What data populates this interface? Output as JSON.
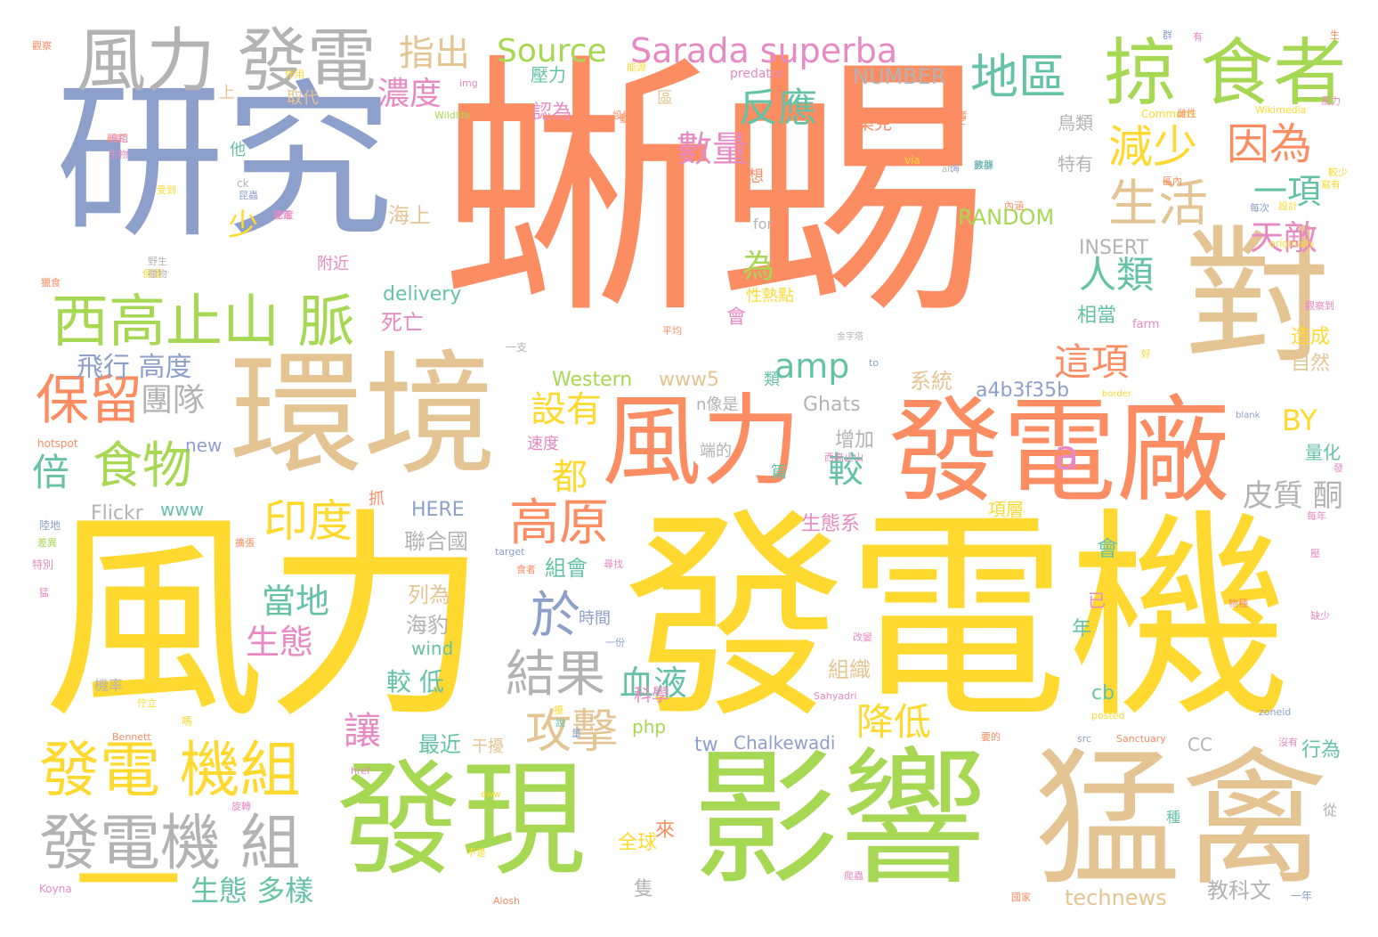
{
  "palette": {
    "salmon": "#fc8d62",
    "slate": "#8da0cb",
    "pink": "#e78ac3",
    "lime": "#a6d854",
    "yellow": "#ffd92f",
    "tan": "#e5c494",
    "gray": "#b3b3b3",
    "green": "#66c2a5"
  },
  "words": [
    {
      "id": "w1",
      "t": "蜥蜴",
      "c": "salmon"
    },
    {
      "id": "w2",
      "t": "風力",
      "c": "yellow"
    },
    {
      "id": "w3",
      "t": "發電機",
      "c": "yellow"
    },
    {
      "id": "w4",
      "t": "研究",
      "c": "slate"
    },
    {
      "id": "w5",
      "t": "環境",
      "c": "tan"
    },
    {
      "id": "w6",
      "t": "影響",
      "c": "lime"
    },
    {
      "id": "w7",
      "t": "猛禽",
      "c": "tan"
    },
    {
      "id": "w8",
      "t": "發現",
      "c": "lime"
    },
    {
      "id": "w9",
      "t": "對",
      "c": "tan"
    },
    {
      "id": "w10",
      "t": "發電廠",
      "c": "salmon"
    },
    {
      "id": "w11",
      "t": "風力",
      "c": "salmon"
    },
    {
      "id": "w12",
      "t": "風力 發電",
      "c": "gray"
    },
    {
      "id": "w13",
      "t": "掠 食者",
      "c": "lime"
    },
    {
      "id": "w14",
      "t": "西高止山 脈",
      "c": "lime"
    },
    {
      "id": "w15",
      "t": "發電 機組",
      "c": "yellow"
    },
    {
      "id": "w16",
      "t": "發電機 組",
      "c": "gray"
    },
    {
      "id": "w17",
      "t": "一",
      "c": "yellow"
    },
    {
      "id": "w18",
      "t": "Sarada superba",
      "c": "pink"
    },
    {
      "id": "w19",
      "t": "Source",
      "c": "lime"
    },
    {
      "id": "w20",
      "t": "地區",
      "c": "green"
    },
    {
      "id": "w21",
      "t": "生活",
      "c": "tan"
    },
    {
      "id": "w22",
      "t": "減少",
      "c": "yellow"
    },
    {
      "id": "w23",
      "t": "因為",
      "c": "salmon"
    },
    {
      "id": "w24",
      "t": "指出",
      "c": "tan"
    },
    {
      "id": "w25",
      "t": "保留",
      "c": "salmon"
    },
    {
      "id": "w26",
      "t": "食物",
      "c": "lime"
    },
    {
      "id": "w27",
      "t": "高原",
      "c": "salmon"
    },
    {
      "id": "w28",
      "t": "印度",
      "c": "yellow"
    },
    {
      "id": "w29",
      "t": "攻擊",
      "c": "tan"
    },
    {
      "id": "w30",
      "t": "結果",
      "c": "gray"
    },
    {
      "id": "w31",
      "t": "於",
      "c": "slate"
    },
    {
      "id": "w32",
      "t": "反應",
      "c": "green"
    },
    {
      "id": "w33",
      "t": "數量",
      "c": "pink"
    },
    {
      "id": "w34",
      "t": "amp",
      "c": "green"
    },
    {
      "id": "w35",
      "t": "一項",
      "c": "green"
    },
    {
      "id": "w36",
      "t": "天敵",
      "c": "pink"
    },
    {
      "id": "w37",
      "t": "人類",
      "c": "green"
    },
    {
      "id": "w38",
      "t": "這項",
      "c": "salmon"
    },
    {
      "id": "w39",
      "t": "濃度",
      "c": "pink"
    },
    {
      "id": "w40",
      "t": "團隊",
      "c": "gray"
    },
    {
      "id": "w41",
      "t": "飛行 高度",
      "c": "slate"
    },
    {
      "id": "w42",
      "t": "倍",
      "c": "green"
    },
    {
      "id": "w43",
      "t": "a",
      "c": "pink"
    },
    {
      "id": "w44",
      "t": "為",
      "c": "lime"
    },
    {
      "id": "w45",
      "t": "設有",
      "c": "yellow"
    },
    {
      "id": "w46",
      "t": "都",
      "c": "yellow"
    },
    {
      "id": "w47",
      "t": "當地",
      "c": "green"
    },
    {
      "id": "w48",
      "t": "生態",
      "c": "pink"
    },
    {
      "id": "w49",
      "t": "血液",
      "c": "green"
    },
    {
      "id": "w50",
      "t": "較",
      "c": "green"
    },
    {
      "id": "w51",
      "t": "降低",
      "c": "yellow"
    },
    {
      "id": "w52",
      "t": "讓",
      "c": "pink"
    },
    {
      "id": "w53",
      "t": "生態 多樣",
      "c": "green"
    },
    {
      "id": "w54",
      "t": "BY",
      "c": "yellow"
    },
    {
      "id": "w55",
      "t": "皮質 酮",
      "c": "gray"
    },
    {
      "id": "w56",
      "t": "少",
      "c": "yellow"
    },
    {
      "id": "w57",
      "t": "RANDOM",
      "c": "lime"
    },
    {
      "id": "w58",
      "t": "INSERT",
      "c": "gray"
    },
    {
      "id": "w59",
      "t": "delivery",
      "c": "green"
    },
    {
      "id": "w60",
      "t": "Western",
      "c": "lime"
    },
    {
      "id": "w61",
      "t": "www5",
      "c": "tan"
    },
    {
      "id": "w62",
      "t": "a4b3f35b",
      "c": "slate"
    },
    {
      "id": "w63",
      "t": "Ghats",
      "c": "gray"
    },
    {
      "id": "w64",
      "t": "Flickr",
      "c": "gray"
    },
    {
      "id": "w65",
      "t": "www",
      "c": "green"
    },
    {
      "id": "w66",
      "t": "HERE",
      "c": "slate"
    },
    {
      "id": "w67",
      "t": "NUMBER",
      "c": "gray"
    },
    {
      "id": "w68",
      "t": "technews",
      "c": "tan"
    },
    {
      "id": "w69",
      "t": "Chalkewadi",
      "c": "slate"
    },
    {
      "id": "w70",
      "t": "tw",
      "c": "slate"
    },
    {
      "id": "w71",
      "t": "php",
      "c": "lime"
    },
    {
      "id": "w72",
      "t": "wind",
      "c": "green"
    },
    {
      "id": "w73",
      "t": "cb",
      "c": "green"
    },
    {
      "id": "w74",
      "t": "new",
      "c": "slate"
    },
    {
      "id": "w75",
      "t": "CC",
      "c": "gray"
    },
    {
      "id": "w76",
      "t": "系統",
      "c": "tan"
    },
    {
      "id": "w77",
      "t": "聯合國",
      "c": "gray"
    },
    {
      "id": "w78",
      "t": "海豹",
      "c": "gray"
    },
    {
      "id": "w79",
      "t": "列為",
      "c": "tan"
    },
    {
      "id": "w80",
      "t": "組會",
      "c": "green"
    },
    {
      "id": "w81",
      "t": "時間",
      "c": "slate"
    },
    {
      "id": "w82",
      "t": "組織",
      "c": "tan"
    },
    {
      "id": "w83",
      "t": "較 低",
      "c": "green"
    },
    {
      "id": "w84",
      "t": "科學",
      "c": "pink"
    },
    {
      "id": "w85",
      "t": "最近",
      "c": "green"
    },
    {
      "id": "w86",
      "t": "干擾",
      "c": "tan"
    },
    {
      "id": "w87",
      "t": "全球",
      "c": "yellow"
    },
    {
      "id": "w88",
      "t": "來",
      "c": "salmon"
    },
    {
      "id": "w89",
      "t": "隻",
      "c": "gray"
    },
    {
      "id": "w90",
      "t": "教科文",
      "c": "gray"
    },
    {
      "id": "w91",
      "t": "行為",
      "c": "green"
    },
    {
      "id": "w92",
      "t": "增加",
      "c": "gray"
    },
    {
      "id": "w93",
      "t": "生態系",
      "c": "pink"
    },
    {
      "id": "w94",
      "t": "項層",
      "c": "yellow"
    },
    {
      "id": "w95",
      "t": "造成",
      "c": "yellow"
    },
    {
      "id": "w96",
      "t": "自然",
      "c": "tan"
    },
    {
      "id": "w97",
      "t": "量化",
      "c": "green"
    },
    {
      "id": "w98",
      "t": "相當",
      "c": "green"
    },
    {
      "id": "w99",
      "t": "特有",
      "c": "gray"
    },
    {
      "id": "w100",
      "t": "鳥類",
      "c": "gray"
    },
    {
      "id": "w101",
      "t": "認為",
      "c": "pink"
    },
    {
      "id": "w102",
      "t": "桑克",
      "c": "salmon"
    },
    {
      "id": "w103",
      "t": "海上",
      "c": "tan"
    },
    {
      "id": "w104",
      "t": "附近",
      "c": "pink"
    },
    {
      "id": "w105",
      "t": "死亡",
      "c": "pink"
    },
    {
      "id": "w106",
      "t": "性熱點",
      "c": "yellow"
    },
    {
      "id": "w107",
      "t": "會",
      "c": "pink"
    },
    {
      "id": "w108",
      "t": "會",
      "c": "green"
    },
    {
      "id": "w109",
      "t": "年",
      "c": "green"
    },
    {
      "id": "w110",
      "t": "已",
      "c": "pink"
    },
    {
      "id": "w111",
      "t": "類",
      "c": "green"
    },
    {
      "id": "w112",
      "t": "n像是",
      "c": "gray"
    },
    {
      "id": "w113",
      "t": "速度",
      "c": "pink"
    },
    {
      "id": "w114",
      "t": "端的",
      "c": "gray"
    },
    {
      "id": "w115",
      "t": "抓",
      "c": "salmon"
    },
    {
      "id": "w116",
      "t": "壓力",
      "c": "green"
    },
    {
      "id": "w117",
      "t": "取代",
      "c": "tan"
    },
    {
      "id": "w118",
      "t": "上",
      "c": "tan"
    },
    {
      "id": "w119",
      "t": "他",
      "c": "green"
    },
    {
      "id": "w120",
      "t": "想",
      "c": "salmon"
    },
    {
      "id": "w121",
      "t": "區",
      "c": "tan"
    },
    {
      "id": "w122",
      "t": "篇",
      "c": "green"
    },
    {
      "id": "w123",
      "t": "for",
      "c": "gray"
    },
    {
      "id": "w124",
      "t": "種",
      "c": "green"
    },
    {
      "id": "w125",
      "t": "從",
      "c": "gray"
    },
    {
      "id": "w126",
      "t": "機率",
      "c": "gray"
    },
    {
      "id": "w127",
      "t": "predator",
      "c": "pink"
    },
    {
      "id": "w128",
      "t": "Commons",
      "c": "yellow"
    },
    {
      "id": "w129",
      "t": "Wikimedia",
      "c": "yellow"
    },
    {
      "id": "w130",
      "t": "Wildlife",
      "c": "lime"
    },
    {
      "id": "w131",
      "t": "img",
      "c": "pink"
    },
    {
      "id": "w132",
      "t": "via",
      "c": "yellow"
    },
    {
      "id": "w133",
      "t": "alt",
      "c": "gray"
    },
    {
      "id": "w134",
      "t": "ck",
      "c": "gray"
    },
    {
      "id": "w135",
      "t": "originally",
      "c": "yellow"
    },
    {
      "id": "w136",
      "t": "farm",
      "c": "pink"
    },
    {
      "id": "w137",
      "t": "to",
      "c": "slate"
    },
    {
      "id": "w138",
      "t": "border",
      "c": "yellow"
    },
    {
      "id": "w139",
      "t": "blank",
      "c": "slate"
    },
    {
      "id": "w140",
      "t": "hotspot",
      "c": "salmon"
    },
    {
      "id": "w141",
      "t": "target",
      "c": "slate"
    },
    {
      "id": "w142",
      "t": "Sahyadri",
      "c": "pink"
    },
    {
      "id": "w143",
      "t": "Bennett",
      "c": "salmon"
    },
    {
      "id": "w144",
      "t": "posted",
      "c": "yellow"
    },
    {
      "id": "w145",
      "t": "src",
      "c": "slate"
    },
    {
      "id": "w146",
      "t": "Sanctuary",
      "c": "salmon"
    },
    {
      "id": "w147",
      "t": "zoneid",
      "c": "slate"
    },
    {
      "id": "w148",
      "t": "href",
      "c": "pink"
    },
    {
      "id": "w149",
      "t": "Koyna",
      "c": "pink"
    },
    {
      "id": "w150",
      "t": "Alosh",
      "c": "salmon"
    },
    {
      "id": "w151",
      "t": "eww",
      "c": "yellow"
    },
    {
      "id": "w152",
      "t": "西高止山",
      "c": "pink"
    },
    {
      "id": "w153",
      "t": "金字塔",
      "c": "gray"
    },
    {
      "id": "w154",
      "t": "平均",
      "c": "salmon"
    },
    {
      "id": "w155",
      "t": "一支",
      "c": "gray"
    },
    {
      "id": "w156",
      "t": "一份",
      "c": "slate"
    },
    {
      "id": "w157",
      "t": "改變",
      "c": "pink"
    },
    {
      "id": "w158",
      "t": "尋找",
      "c": "pink"
    },
    {
      "id": "w159",
      "t": "食者",
      "c": "salmon"
    },
    {
      "id": "w160",
      "t": "擴張",
      "c": "salmon"
    },
    {
      "id": "w161",
      "t": "特別",
      "c": "pink"
    },
    {
      "id": "w162",
      "t": "陸地",
      "c": "slate"
    },
    {
      "id": "w163",
      "t": "嗎",
      "c": "yellow"
    },
    {
      "id": "w164",
      "t": "每年",
      "c": "pink"
    },
    {
      "id": "w165",
      "t": "一年",
      "c": "slate"
    },
    {
      "id": "w166",
      "t": "國家",
      "c": "salmon"
    },
    {
      "id": "w167",
      "t": "不是",
      "c": "yellow"
    },
    {
      "id": "w168",
      "t": "要的",
      "c": "salmon"
    },
    {
      "id": "w169",
      "t": "沒有",
      "c": "pink"
    },
    {
      "id": "w170",
      "t": "寫有",
      "c": "yellow"
    },
    {
      "id": "w171",
      "t": "觀察到",
      "c": "pink"
    },
    {
      "id": "w172",
      "t": "風力",
      "c": "pink"
    },
    {
      "id": "w173",
      "t": "有",
      "c": "pink"
    },
    {
      "id": "w174",
      "t": "觀察",
      "c": "salmon"
    },
    {
      "id": "w175",
      "t": "缺少",
      "c": "pink"
    },
    {
      "id": "w176",
      "t": "設計",
      "c": "yellow"
    },
    {
      "id": "w177",
      "t": "野生",
      "c": "gray"
    },
    {
      "id": "w178",
      "t": "研究",
      "c": "salmon"
    },
    {
      "id": "w179",
      "t": "擾",
      "c": "yellow"
    },
    {
      "id": "w180",
      "t": "量",
      "c": "slate"
    },
    {
      "id": "w181",
      "t": "每次",
      "c": "slate"
    },
    {
      "id": "w182",
      "t": "數據",
      "c": "slate"
    },
    {
      "id": "w183",
      "t": "研究者",
      "c": "salmon"
    },
    {
      "id": "w184",
      "t": "昆蟲",
      "c": "slate"
    },
    {
      "id": "w185",
      "t": "密度",
      "c": "pink"
    },
    {
      "id": "w186",
      "t": "生物",
      "c": "pink"
    },
    {
      "id": "w187",
      "t": "可再生",
      "c": "salmon"
    },
    {
      "id": "w188",
      "t": "能源",
      "c": "yellow"
    },
    {
      "id": "w189",
      "t": "生",
      "c": "salmon"
    },
    {
      "id": "w190",
      "t": "海",
      "c": "slate"
    },
    {
      "id": "w191",
      "t": "群",
      "c": "slate"
    },
    {
      "id": "w192",
      "t": "內涵",
      "c": "salmon"
    },
    {
      "id": "w193",
      "t": "設備",
      "c": "salmon"
    },
    {
      "id": "w194",
      "t": "區內",
      "c": "salmon"
    },
    {
      "id": "w195",
      "t": "雄性",
      "c": "salmon"
    },
    {
      "id": "w196",
      "t": "雌性",
      "c": "salmon"
    },
    {
      "id": "w197",
      "t": "動物",
      "c": "salmon"
    },
    {
      "id": "w198",
      "t": "發電",
      "c": "pink"
    },
    {
      "id": "w199",
      "t": "好",
      "c": "yellow"
    },
    {
      "id": "w200",
      "t": "族群",
      "c": "green"
    },
    {
      "id": "w201",
      "t": "差異",
      "c": "lime"
    },
    {
      "id": "w202",
      "t": "保護",
      "c": "yellow"
    },
    {
      "id": "w203",
      "t": "機組",
      "c": "pink"
    },
    {
      "id": "w204",
      "t": "受到",
      "c": "yellow"
    },
    {
      "id": "w205",
      "t": "作用",
      "c": "yellow"
    },
    {
      "id": "w206",
      "t": "獵物",
      "c": "gray"
    },
    {
      "id": "w207",
      "t": "獵食",
      "c": "salmon"
    },
    {
      "id": "w208",
      "t": "較少",
      "c": "yellow"
    },
    {
      "id": "w209",
      "t": "發",
      "c": "pink"
    },
    {
      "id": "w210",
      "t": "壓",
      "c": "pink"
    },
    {
      "id": "w211",
      "t": "旋轉",
      "c": "pink"
    },
    {
      "id": "w212",
      "t": "佇立",
      "c": "yellow"
    },
    {
      "id": "w213",
      "t": "猛",
      "c": "pink"
    },
    {
      "id": "w214",
      "t": "說",
      "c": "green"
    },
    {
      "id": "w215",
      "t": "爬蟲",
      "c": "pink"
    },
    {
      "id": "w216",
      "t": "物種",
      "c": "salmon"
    }
  ]
}
